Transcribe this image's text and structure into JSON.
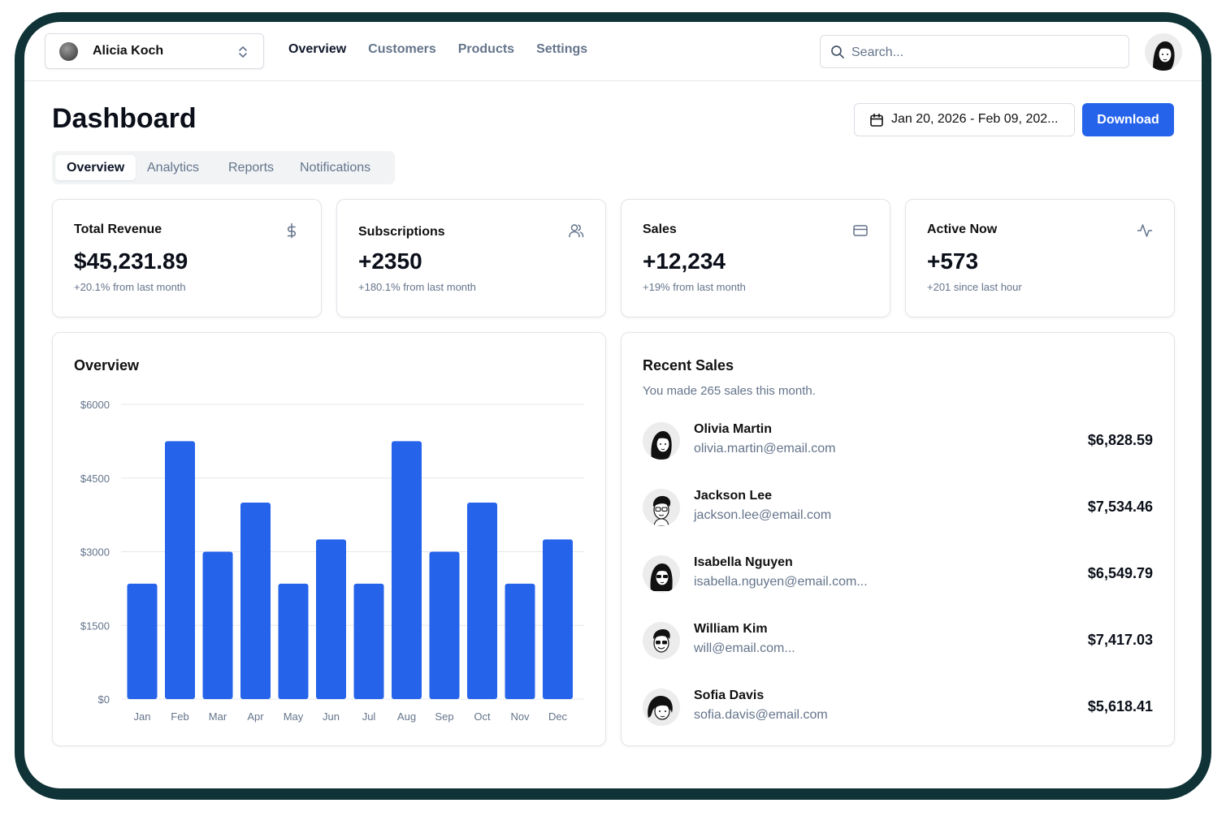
{
  "team": {
    "name": "Alicia Koch"
  },
  "nav": {
    "items": [
      "Overview",
      "Customers",
      "Products",
      "Settings"
    ],
    "active": "Overview"
  },
  "search": {
    "placeholder": "Search..."
  },
  "page": {
    "title": "Dashboard",
    "date_range": "Jan 20, 2026 - Feb 09, 202...",
    "download_label": "Download"
  },
  "tabs": [
    "Overview",
    "Analytics",
    "Reports",
    "Notifications"
  ],
  "stats": [
    {
      "title": "Total Revenue",
      "value": "$45,231.89",
      "sub": "+20.1% from last month",
      "icon": "dollar-icon"
    },
    {
      "title": "Subscriptions",
      "value": "+2350",
      "sub": "+180.1% from last month",
      "icon": "users-icon"
    },
    {
      "title": "Sales",
      "value": "+12,234",
      "sub": "+19% from last month",
      "icon": "credit-card-icon"
    },
    {
      "title": "Active Now",
      "value": "+573",
      "sub": "+201 since last hour",
      "icon": "activity-icon"
    }
  ],
  "overview": {
    "title": "Overview"
  },
  "recent_sales": {
    "title": "Recent Sales",
    "subtitle": "You made 265 sales this month.",
    "items": [
      {
        "name": "Olivia Martin",
        "email": "olivia.martin@email.com",
        "amount": "$6,828.59"
      },
      {
        "name": "Jackson Lee",
        "email": "jackson.lee@email.com",
        "amount": "$7,534.46"
      },
      {
        "name": "Isabella Nguyen",
        "email": "isabella.nguyen@email.com...",
        "amount": "$6,549.79"
      },
      {
        "name": "William Kim",
        "email": "will@email.com...",
        "amount": "$7,417.03"
      },
      {
        "name": "Sofia Davis",
        "email": "sofia.davis@email.com",
        "amount": "$5,618.41"
      }
    ]
  },
  "colors": {
    "accent": "#2563eb",
    "frame": "#0f3336",
    "muted": "#64748b"
  },
  "chart_data": {
    "type": "bar",
    "title": "Overview",
    "categories": [
      "Jan",
      "Feb",
      "Mar",
      "Apr",
      "May",
      "Jun",
      "Jul",
      "Aug",
      "Sep",
      "Oct",
      "Nov",
      "Dec"
    ],
    "values": [
      2350,
      5250,
      3000,
      4000,
      2350,
      3250,
      2350,
      5250,
      3000,
      4000,
      2350,
      3250
    ],
    "yticks": [
      "$0",
      "$1500",
      "$3000",
      "$4500",
      "$6000"
    ],
    "ylim": [
      0,
      6000
    ],
    "grid": true,
    "color": "#2563eb"
  }
}
